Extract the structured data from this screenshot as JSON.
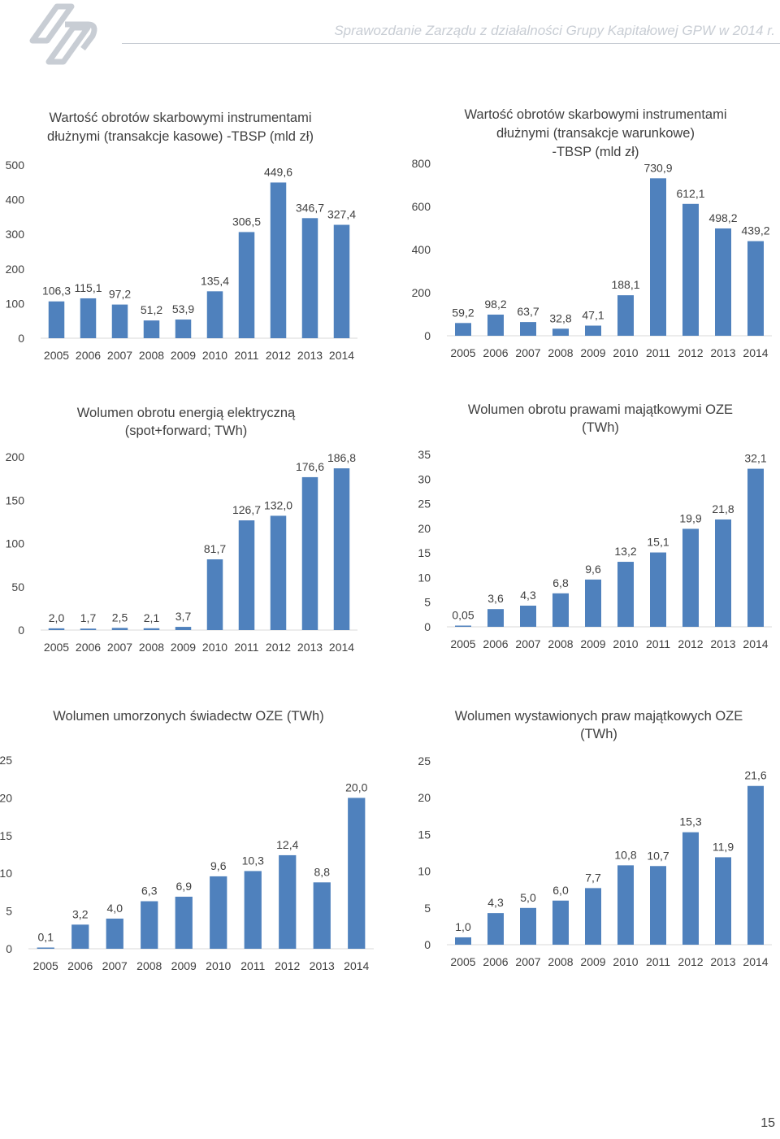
{
  "header": {
    "title": "Sprawozdanie Zarządu z działalności Grupy Kapitałowej GPW w 2014 r."
  },
  "page_number": "15",
  "colors": {
    "bar": "#4f81bd",
    "grid": "#d9d9d9",
    "text": "#404040",
    "header": "#c8cdd4"
  },
  "chart_data": [
    {
      "id": "c1",
      "type": "bar",
      "title": [
        "Wartość obrotów skarbowymi instrumentami",
        "dłużnymi (transakcje kasowe) -TBSP (mld zł)"
      ],
      "categories": [
        "2005",
        "2006",
        "2007",
        "2008",
        "2009",
        "2010",
        "2011",
        "2012",
        "2013",
        "2014"
      ],
      "values": [
        106.3,
        115.1,
        97.2,
        51.2,
        53.9,
        135.4,
        306.5,
        449.6,
        346.7,
        327.4
      ],
      "labels": [
        "106,3",
        "115,1",
        "97,2",
        "51,2",
        "53,9",
        "135,4",
        "306,5",
        "449,6",
        "346,7",
        "327,4"
      ],
      "yticks": [
        0,
        100,
        200,
        300,
        400,
        500
      ],
      "ylim": [
        0,
        500
      ]
    },
    {
      "id": "c2",
      "type": "bar",
      "title": [
        "Wartość obrotów skarbowymi instrumentami",
        "dłużnymi (transakcje warunkowe)",
        "-TBSP (mld zł)"
      ],
      "categories": [
        "2005",
        "2006",
        "2007",
        "2008",
        "2009",
        "2010",
        "2011",
        "2012",
        "2013",
        "2014"
      ],
      "values": [
        59.2,
        98.2,
        63.7,
        32.8,
        47.1,
        188.1,
        730.9,
        612.1,
        498.2,
        439.2
      ],
      "labels": [
        "59,2",
        "98,2",
        "63,7",
        "32,8",
        "47,1",
        "188,1",
        "730,9",
        "612,1",
        "498,2",
        "439,2"
      ],
      "yticks": [
        0,
        200,
        400,
        600,
        800
      ],
      "ylim": [
        0,
        800
      ]
    },
    {
      "id": "c3",
      "type": "bar",
      "title": [
        "Wolumen obrotu energią elektryczną",
        "(spot+forward; TWh)"
      ],
      "categories": [
        "2005",
        "2006",
        "2007",
        "2008",
        "2009",
        "2010",
        "2011",
        "2012",
        "2013",
        "2014"
      ],
      "values": [
        2.0,
        1.7,
        2.5,
        2.1,
        3.7,
        81.7,
        126.7,
        132.0,
        176.6,
        186.8
      ],
      "labels": [
        "2,0",
        "1,7",
        "2,5",
        "2,1",
        "3,7",
        "81,7",
        "126,7",
        "132,0",
        "176,6",
        "186,8"
      ],
      "yticks": [
        0,
        50,
        100,
        150,
        200
      ],
      "ylim": [
        0,
        200
      ]
    },
    {
      "id": "c4",
      "type": "bar",
      "title": [
        "Wolumen obrotu prawami majątkowymi OZE",
        "(TWh)"
      ],
      "categories": [
        "2005",
        "2006",
        "2007",
        "2008",
        "2009",
        "2010",
        "2011",
        "2012",
        "2013",
        "2014"
      ],
      "values": [
        0.05,
        3.6,
        4.3,
        6.8,
        9.6,
        13.2,
        15.1,
        19.9,
        21.8,
        32.1
      ],
      "labels": [
        "0,05",
        "3,6",
        "4,3",
        "6,8",
        "9,6",
        "13,2",
        "15,1",
        "19,9",
        "21,8",
        "32,1"
      ],
      "yticks": [
        0,
        5,
        10,
        15,
        20,
        25,
        30,
        35
      ],
      "ylim": [
        0,
        35
      ]
    },
    {
      "id": "c5",
      "type": "bar",
      "title": [
        "Wolumen umorzonych świadectw OZE (TWh)"
      ],
      "categories": [
        "2005",
        "2006",
        "2007",
        "2008",
        "2009",
        "2010",
        "2011",
        "2012",
        "2013",
        "2014"
      ],
      "values": [
        0.1,
        3.2,
        4.0,
        6.3,
        6.9,
        9.6,
        10.3,
        12.4,
        8.8,
        20.0
      ],
      "labels": [
        "0,1",
        "3,2",
        "4,0",
        "6,3",
        "6,9",
        "9,6",
        "10,3",
        "12,4",
        "8,8",
        "20,0"
      ],
      "yticks": [
        0,
        5,
        10,
        15,
        20,
        25
      ],
      "ylim": [
        0,
        25
      ]
    },
    {
      "id": "c6",
      "type": "bar",
      "title": [
        "Wolumen wystawionych praw majątkowych OZE",
        "(TWh)"
      ],
      "categories": [
        "2005",
        "2006",
        "2007",
        "2008",
        "2009",
        "2010",
        "2011",
        "2012",
        "2013",
        "2014"
      ],
      "values": [
        1.0,
        4.3,
        5.0,
        6.0,
        7.7,
        10.8,
        10.7,
        15.3,
        11.9,
        21.6
      ],
      "labels": [
        "1,0",
        "4,3",
        "5,0",
        "6,0",
        "7,7",
        "10,8",
        "10,7",
        "15,3",
        "11,9",
        "21,6"
      ],
      "yticks": [
        0,
        5,
        10,
        15,
        20,
        25
      ],
      "ylim": [
        0,
        25
      ]
    }
  ]
}
